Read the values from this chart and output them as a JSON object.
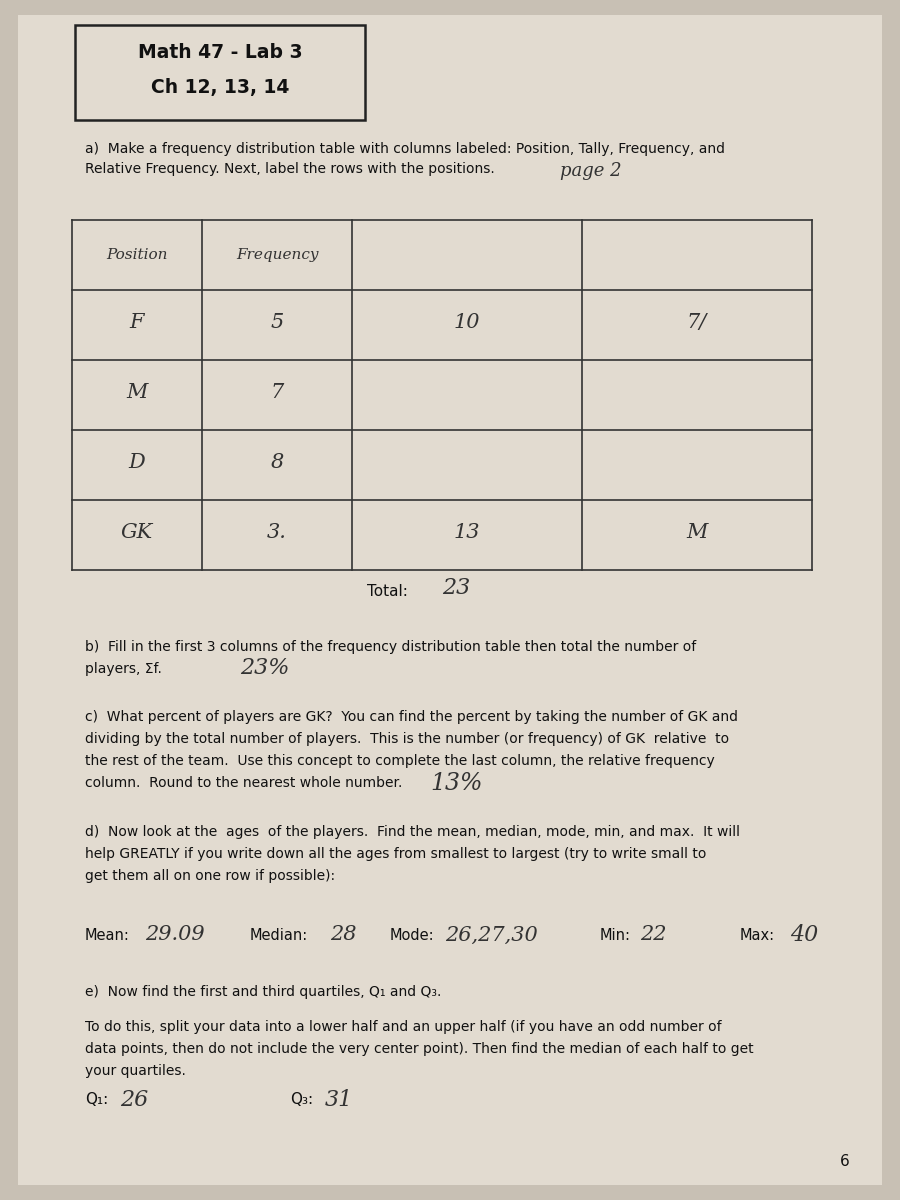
{
  "title_line1": "Math 47 - Lab 3",
  "title_line2": "Ch 12, 13, 14",
  "bg_color": "#c8c0b4",
  "paper_color": "#e2dbd0",
  "section_a_text1": "a)  Make a frequency distribution table with columns labeled: Position, Tally, Frequency, and",
  "section_a_text2": "Relative Frequency. Next, label the rows with the positions.",
  "page_note": "page 2",
  "table_col_headers": [
    "Position",
    "Frequency",
    "",
    ""
  ],
  "table_row_data": [
    [
      "F",
      "5",
      "10",
      "7/"
    ],
    [
      "M",
      "7",
      "",
      ""
    ],
    [
      "D",
      "8",
      "",
      ""
    ],
    [
      "GK",
      "3.",
      "13",
      "M"
    ]
  ],
  "total_label": "Total:",
  "total_value": "23",
  "section_b_text1": "b)  Fill in the first 3 columns of the frequency distribution table then total the number of",
  "section_b_text2": "players, Σf.",
  "section_b_answer": "23%",
  "section_c_text1": "c)  What percent of players are GK?  You can find the percent by taking the number of GK and",
  "section_c_text2": "dividing by the total number of players.  This is the number (or frequency) of GK  relative  to",
  "section_c_text3": "the rest of the team.  Use this concept to complete the last column, the relative frequency",
  "section_c_text4": "column.  Round to the nearest whole number.",
  "section_c_answer": "13%",
  "section_d_text1": "d)  Now look at the  ages  of the players.  Find the mean, median, mode, min, and max.  It will",
  "section_d_text2": "help GREATLY if you write down all the ages from smallest to largest (try to write small to",
  "section_d_text3": "get them all on one row if possible):",
  "mean_label": "Mean:",
  "mean_value": "29.09",
  "median_label": "Median:",
  "median_value": "28",
  "mode_label": "Mode:",
  "mode_value": "26,27,30",
  "min_label": "Min:",
  "min_value": "22",
  "max_label": "Max:",
  "max_value": "40",
  "section_e_text": "e)  Now find the first and third quartiles, Q₁ and Q₃.",
  "section_e2_text1": "To do this, split your data into a lower half and an upper half (if you have an odd number of",
  "section_e2_text2": "data points, then do not include the very center point). Then find the median of each half to get",
  "section_e2_text3": "your quartiles.",
  "q1_label": "Q₁:",
  "q1_value": "26",
  "q3_label": "Q₃:",
  "q3_value": "31",
  "page_number": "6",
  "font_color": "#111111",
  "hw_color": "#333333"
}
